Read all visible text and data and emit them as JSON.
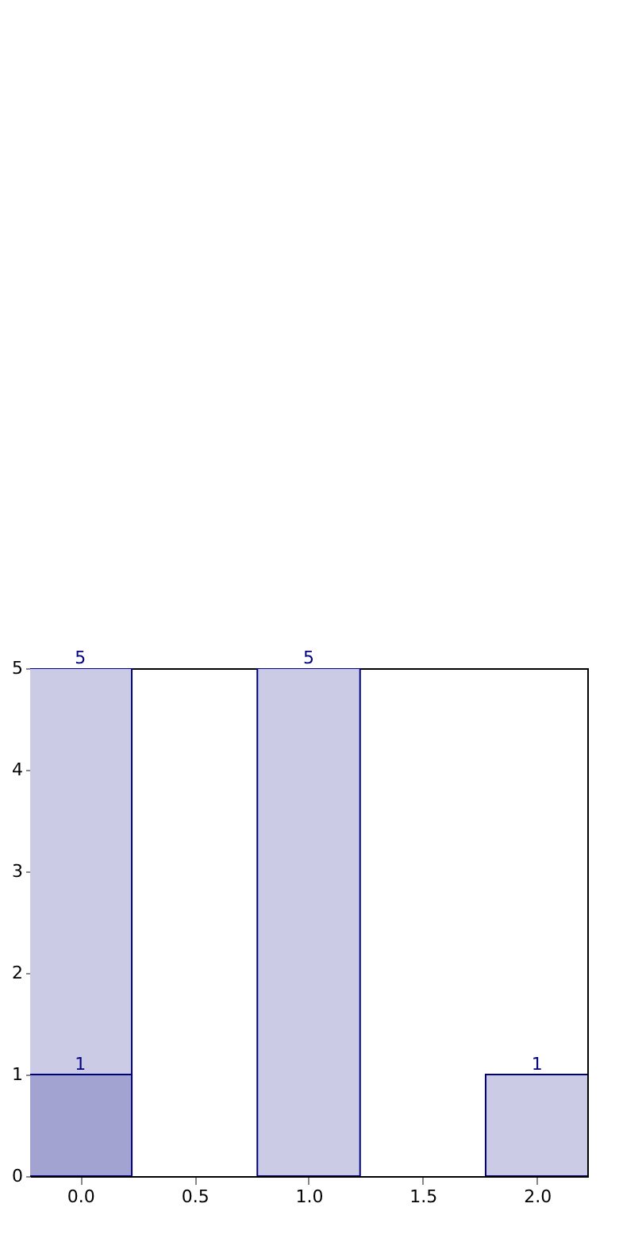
{
  "chart_data": {
    "type": "bar",
    "x": [
      0,
      1,
      2
    ],
    "series": [
      {
        "color": "#cbcbe5",
        "values": [
          5,
          5,
          1
        ]
      },
      {
        "color": "#a3a3d1",
        "x": [
          0
        ],
        "values": [
          1
        ]
      }
    ],
    "xlim": [
      -0.22,
      2.22
    ],
    "xticks": [
      {
        "value": 0,
        "label": "0.0"
      },
      {
        "value": 0.5,
        "label": "0.5"
      },
      {
        "value": 1,
        "label": "1.0"
      },
      {
        "value": 1.5,
        "label": "1.5"
      },
      {
        "value": 2,
        "label": "2.0"
      }
    ],
    "ylim": [
      0,
      5
    ],
    "yticks": [
      0,
      1,
      2,
      3,
      4,
      5
    ],
    "data_labels": true,
    "grid": false
  }
}
